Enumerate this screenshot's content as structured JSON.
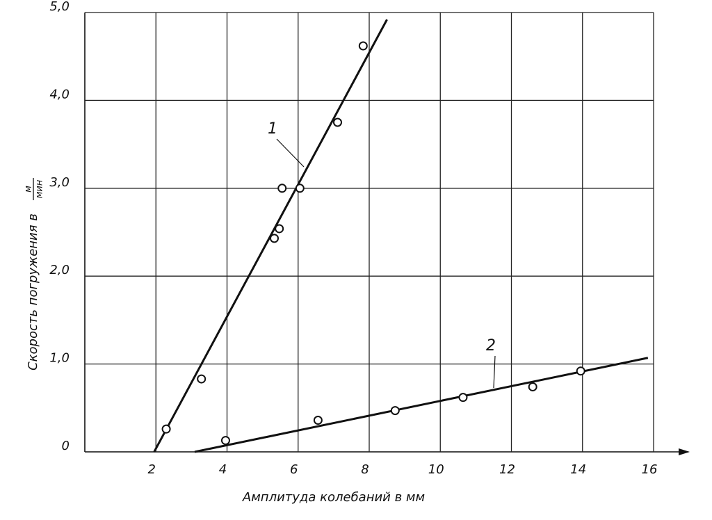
{
  "chart_data": {
    "type": "scatter",
    "xlabel": "Амплитуда колебаний в мм",
    "ylabel": "Скорость погружения в",
    "ylabel_unit_top": "м",
    "ylabel_unit_bottom": "мин",
    "xlim": [
      0,
      16
    ],
    "ylim": [
      0,
      5
    ],
    "xticks": [
      2,
      4,
      6,
      8,
      10,
      12,
      14,
      16
    ],
    "yticks": [
      {
        "value": 0,
        "label": "0"
      },
      {
        "value": 1,
        "label": "1,0"
      },
      {
        "value": 2,
        "label": "2,0"
      },
      {
        "value": 3,
        "label": "3,0"
      },
      {
        "value": 4,
        "label": "4,0"
      },
      {
        "value": 5,
        "label": "5,0"
      }
    ],
    "grid": true,
    "series": [
      {
        "name": "1",
        "color": "#111111",
        "x": [
          2.29,
          3.28,
          5.33,
          5.47,
          5.55,
          6.05,
          7.11,
          7.83
        ],
        "values": [
          0.26,
          0.83,
          2.43,
          2.54,
          3.0,
          3.0,
          3.75,
          4.62
        ],
        "fit_x": [
          1.95,
          8.5
        ],
        "fit_y": [
          0,
          4.92
        ]
      },
      {
        "name": "2",
        "color": "#111111",
        "x": [
          3.96,
          6.56,
          8.73,
          10.64,
          12.6,
          13.95
        ],
        "values": [
          0.13,
          0.36,
          0.47,
          0.62,
          0.74,
          0.92
        ],
        "fit_x": [
          3.09,
          15.84
        ],
        "fit_y": [
          0,
          1.07
        ]
      }
    ]
  }
}
